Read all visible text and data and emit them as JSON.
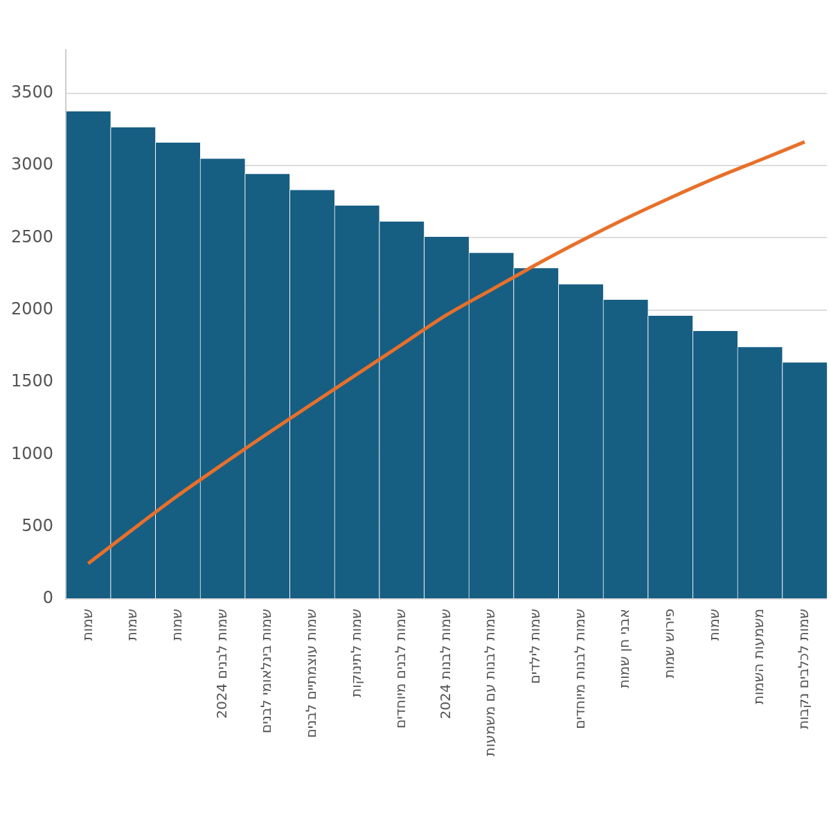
{
  "chart_data": {
    "type": "bar",
    "categories": [
      "שמות",
      "שמות",
      "שמות",
      "שמות לבנים 2024",
      "שמות בינלאומי לבנים",
      "שמות עוצמתיים לבנים",
      "שמות לתינוקות",
      "שמות לבנים מיוחדים",
      "שמות לבנות 2024",
      "שמות לבנות עם משמעות",
      "שמות לילדים",
      "שמות לבנות מיוחדים",
      "אבני חן שמות",
      "פירוש שמות",
      "שמות",
      "משמעות השמות",
      "שמות לכלבים נקבות"
    ],
    "series": [
      {
        "color": "#175e83",
        "values": [
          3375,
          3264,
          3158,
          3047,
          2941,
          2830,
          2723,
          2612,
          2506,
          2395,
          2289,
          2178,
          2071,
          1960,
          1854,
          1743,
          1637
        ]
      },
      {
        "type": "line",
        "color": "#e8702a",
        "values": [
          246,
          483,
          715,
          932,
          1144,
          1350,
          1555,
          1760,
          1965,
          2139,
          2313,
          2477,
          2632,
          2776,
          2912,
          3037,
          3163
        ]
      }
    ],
    "ylim": [
      0,
      3800
    ],
    "yticks": [
      0,
      500,
      1000,
      1500,
      2000,
      2500,
      3000,
      3500
    ],
    "grid": "y",
    "legend": false,
    "marker": "none"
  }
}
